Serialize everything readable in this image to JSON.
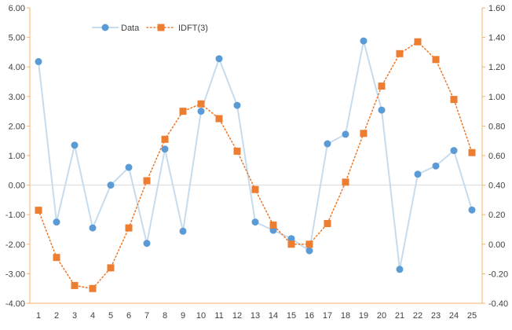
{
  "chart_data": {
    "type": "line",
    "categories": [
      "1",
      "2",
      "3",
      "4",
      "5",
      "6",
      "7",
      "8",
      "9",
      "10",
      "11",
      "12",
      "13",
      "14",
      "15",
      "16",
      "17",
      "18",
      "19",
      "20",
      "21",
      "22",
      "23",
      "24",
      "25"
    ],
    "series": [
      {
        "name": "Data",
        "axis": "left",
        "style": "solid line with circle markers",
        "line_color": "#c5dcee",
        "marker_color": "#5b9bd5",
        "values": [
          4.18,
          -1.25,
          1.35,
          -1.45,
          0.0,
          0.6,
          -1.97,
          1.22,
          -1.56,
          2.5,
          4.28,
          2.7,
          -1.25,
          -1.53,
          -1.81,
          -2.22,
          1.4,
          1.72,
          4.88,
          2.54,
          -2.85,
          0.37,
          0.65,
          1.17,
          -0.84
        ]
      },
      {
        "name": "IDFT(3)",
        "axis": "right",
        "style": "dotted line with square markers",
        "line_color": "#ed7d31",
        "marker_color": "#ed7d31",
        "values": [
          0.23,
          -0.09,
          -0.28,
          -0.3,
          -0.16,
          0.11,
          0.43,
          0.71,
          0.9,
          0.95,
          0.85,
          0.63,
          0.37,
          0.13,
          0.0,
          0.0,
          0.14,
          0.42,
          0.75,
          1.07,
          1.29,
          1.37,
          1.25,
          0.98,
          0.62
        ]
      }
    ],
    "y_left": {
      "min": -4.0,
      "max": 6.0,
      "step": 1.0,
      "ticks": [
        "-4.00",
        "-3.00",
        "-2.00",
        "-1.00",
        "0.00",
        "1.00",
        "2.00",
        "3.00",
        "4.00",
        "5.00",
        "6.00"
      ]
    },
    "y_right": {
      "min": -0.4,
      "max": 1.6,
      "step": 0.2,
      "ticks": [
        "-0.40",
        "-0.20",
        "0.00",
        "0.20",
        "0.40",
        "0.60",
        "0.80",
        "1.00",
        "1.20",
        "1.40",
        "1.60"
      ]
    },
    "title": "",
    "xlabel": "",
    "ylabel": "",
    "grid": false,
    "zero_line": true,
    "legend_position": "top-left",
    "axis_color": "#f5b26b",
    "zero_line_color": "#d9d9d9"
  }
}
